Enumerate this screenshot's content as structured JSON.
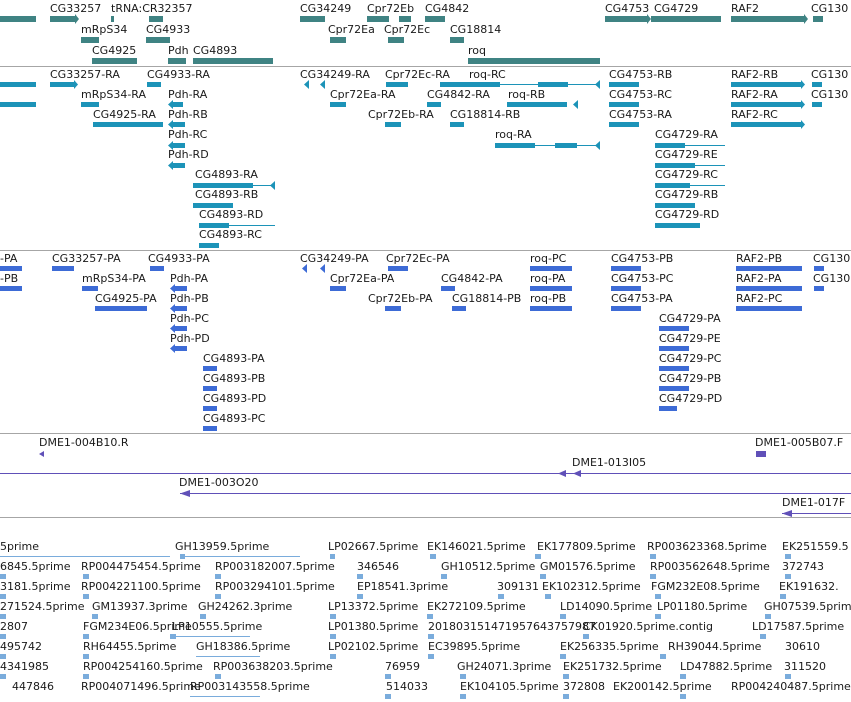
{
  "gene_track": {
    "rows": [
      [
        "CG33257",
        "tRNA:CR32357",
        "CG34249",
        "Cpr72Eb",
        "CG4842",
        "CG4753",
        "CG4729",
        "RAF2",
        "CG130"
      ],
      [
        "mRpS34",
        "CG4933",
        "Cpr72Ea",
        "Cpr72Ec",
        "CG18814"
      ],
      [
        "CG4925",
        "Pdh",
        "CG4893",
        "roq"
      ]
    ]
  },
  "transcript_track": {
    "labels": [
      "CG33257-RA",
      "CG4933-RA",
      "CG34249-RA",
      "Cpr72Ec-RA",
      "roq-RC",
      "CG4753-RB",
      "RAF2-RB",
      "CG130",
      "mRpS34-RA",
      "Pdh-RA",
      "Cpr72Ea-RA",
      "CG4842-RA",
      "roq-RB",
      "CG4753-RC",
      "RAF2-RA",
      "CG130",
      "CG4925-RA",
      "Pdh-RB",
      "Cpr72Eb-RA",
      "CG18814-RB",
      "CG4753-RA",
      "RAF2-RC",
      "Pdh-RC",
      "roq-RA",
      "CG4729-RA",
      "Pdh-RD",
      "CG4729-RE",
      "CG4893-RA",
      "CG4729-RC",
      "CG4893-RB",
      "CG4729-RB",
      "CG4893-RD",
      "CG4729-RD",
      "CG4893-RC"
    ]
  },
  "protein_track": {
    "labels": [
      "-PA",
      "CG33257-PA",
      "CG4933-PA",
      "CG34249-PA",
      "Cpr72Ec-PA",
      "roq-PC",
      "CG4753-PB",
      "RAF2-PB",
      "CG130",
      "-PB",
      "mRpS34-PA",
      "Pdh-PA",
      "Cpr72Ea-PA",
      "CG4842-PA",
      "roq-PA",
      "CG4753-PC",
      "RAF2-PA",
      "CG130",
      "CG4925-PA",
      "Pdh-PB",
      "Cpr72Eb-PA",
      "CG18814-PB",
      "roq-PB",
      "CG4753-PA",
      "RAF2-PC",
      "Pdh-PC",
      "CG4729-PA",
      "Pdh-PD",
      "CG4729-PE",
      "CG4893-PA",
      "CG4729-PC",
      "CG4893-PB",
      "CG4729-PB",
      "CG4893-PD",
      "CG4729-PD",
      "CG4893-PC"
    ]
  },
  "clone_track": {
    "labels": [
      "DME1-004B10.R",
      "DME1-005B07.F",
      "DME1-013I05",
      "DME1-003O20",
      "DME1-017F"
    ]
  },
  "est_track": {
    "labels": [
      "5prime",
      "GH13959.5prime",
      "LP02667.5prime",
      "EK146021.5prime",
      "EK177809.5prime",
      "RP003623368.5prime",
      "EK251559.5",
      "6845.5prime",
      "RP004475454.5prime",
      "RP003182007.5prime",
      "346546",
      "GH10512.5prime",
      "GM01576.5prime",
      "RP003562648.5prime",
      "372743",
      "3181.5prime",
      "RP004221100.5prime",
      "RP003294101.5prime",
      "EP18541.3prime",
      "309131",
      "EK102312.5prime",
      "FGM232E08.5prime",
      "EK191632.",
      "271524.5prime",
      "GM13937.3prime",
      "GH24262.3prime",
      "LP13372.5prime",
      "EK272109.5prime",
      "LD14090.5prime",
      "LP01180.5prime",
      "GH07539.5prime",
      "2807",
      "FGM234E06.5prime",
      "LP10555.5prime",
      "LP01380.5prime",
      "201803151471957643757987",
      "CK01920.5prime.contig",
      "LD17587.5prime",
      "495742",
      "RH64455.5prime",
      "GH18386.5prime",
      "LP02102.5prime",
      "EC39895.5prime",
      "EK256335.5prime",
      "RH39044.5prime",
      "4341985",
      "RP004254160.5prime",
      "RP003638203.5prime",
      "76959",
      "GH24071.3prime",
      "EK251732.5prime",
      "LD47882.5prime",
      "311520",
      "447846",
      "RP004071496.5prime",
      "RP003143558.5prime",
      "514033",
      "EK104105.5prime",
      "372808",
      "EK200142.5prime",
      "RP004240487.5prime",
      "30610"
    ]
  },
  "colors": {
    "gene": "#3f8383",
    "transcript": "#1c93b8",
    "protein": "#3d6bd6",
    "clone": "#6050b8",
    "est": "#7aacdc",
    "separator": "#a6a6a6"
  }
}
